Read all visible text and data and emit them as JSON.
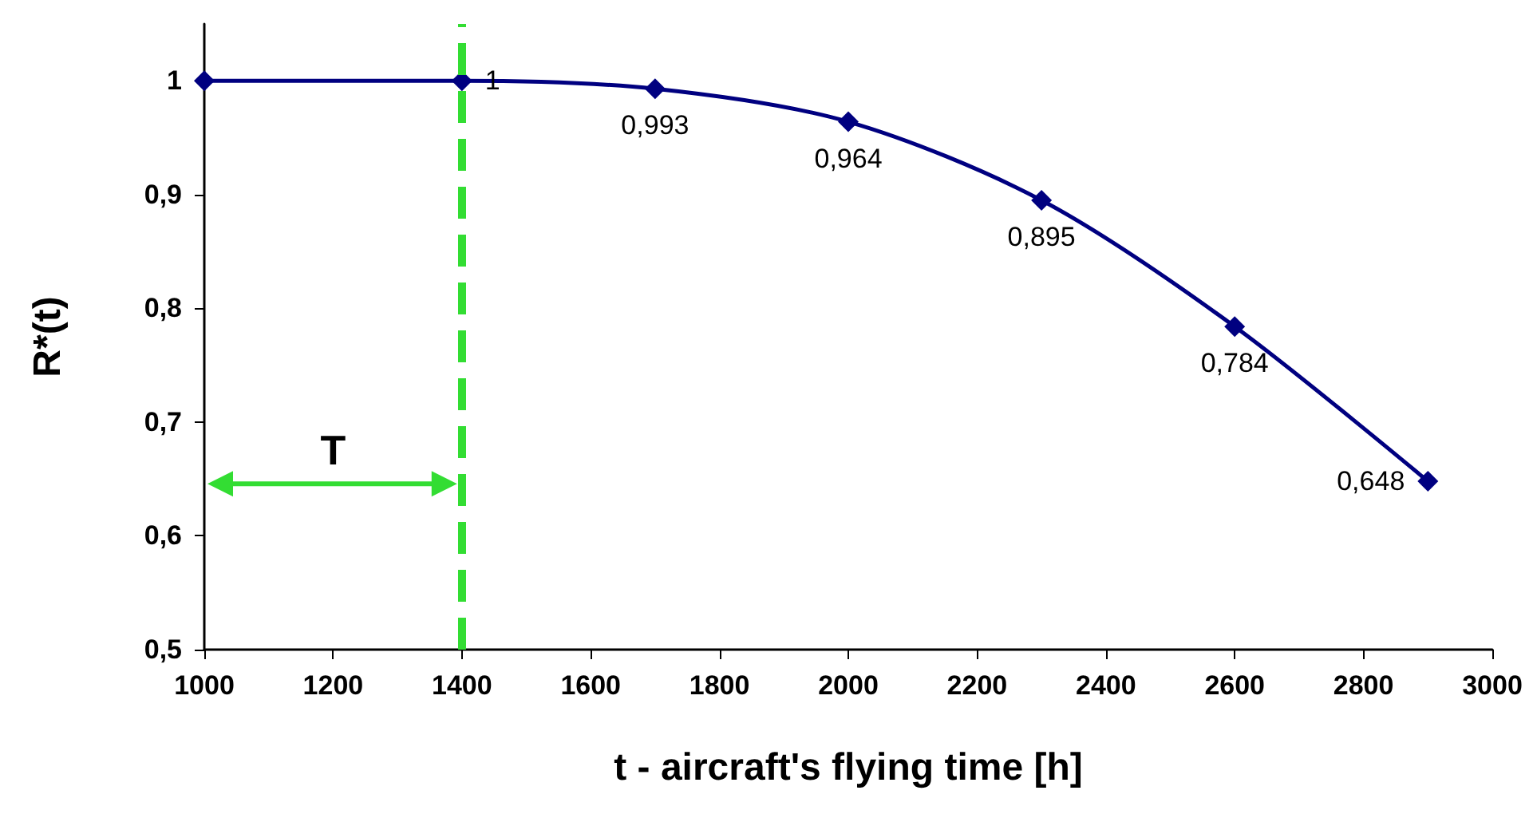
{
  "chart_data": {
    "type": "line",
    "xlabel": "t - aircraft's flying time [h]",
    "ylabel": "R*(t)",
    "x": [
      1000,
      1400,
      1700,
      2000,
      2300,
      2600,
      2900
    ],
    "series": [
      {
        "color": "#000080",
        "values": [
          1,
          1,
          0.993,
          0.964,
          0.895,
          0.784,
          0.648
        ],
        "value_labels": [
          null,
          "1",
          "0,993",
          "0,964",
          "0,895",
          "0,784",
          "0,648"
        ]
      }
    ],
    "xlim": [
      1000,
      3000
    ],
    "xticks": [
      1000,
      1200,
      1400,
      1600,
      1800,
      2000,
      2200,
      2400,
      2600,
      2800,
      3000
    ],
    "ylim": [
      0.5,
      1.05
    ],
    "yticks": [
      {
        "value": 0.5,
        "label": "0,5"
      },
      {
        "value": 0.6,
        "label": "0,6"
      },
      {
        "value": 0.7,
        "label": "0,7"
      },
      {
        "value": 0.8,
        "label": "0,8"
      },
      {
        "value": 0.9,
        "label": "0,9"
      },
      {
        "value": 1,
        "label": "1"
      }
    ],
    "ref_lines": [
      {
        "axis": "x",
        "value": 1400,
        "color": "#33dd33",
        "line_style": "dashed"
      }
    ],
    "annotations": [
      "T"
    ],
    "marker": "diamond",
    "line_style": "solid",
    "grid": false
  }
}
